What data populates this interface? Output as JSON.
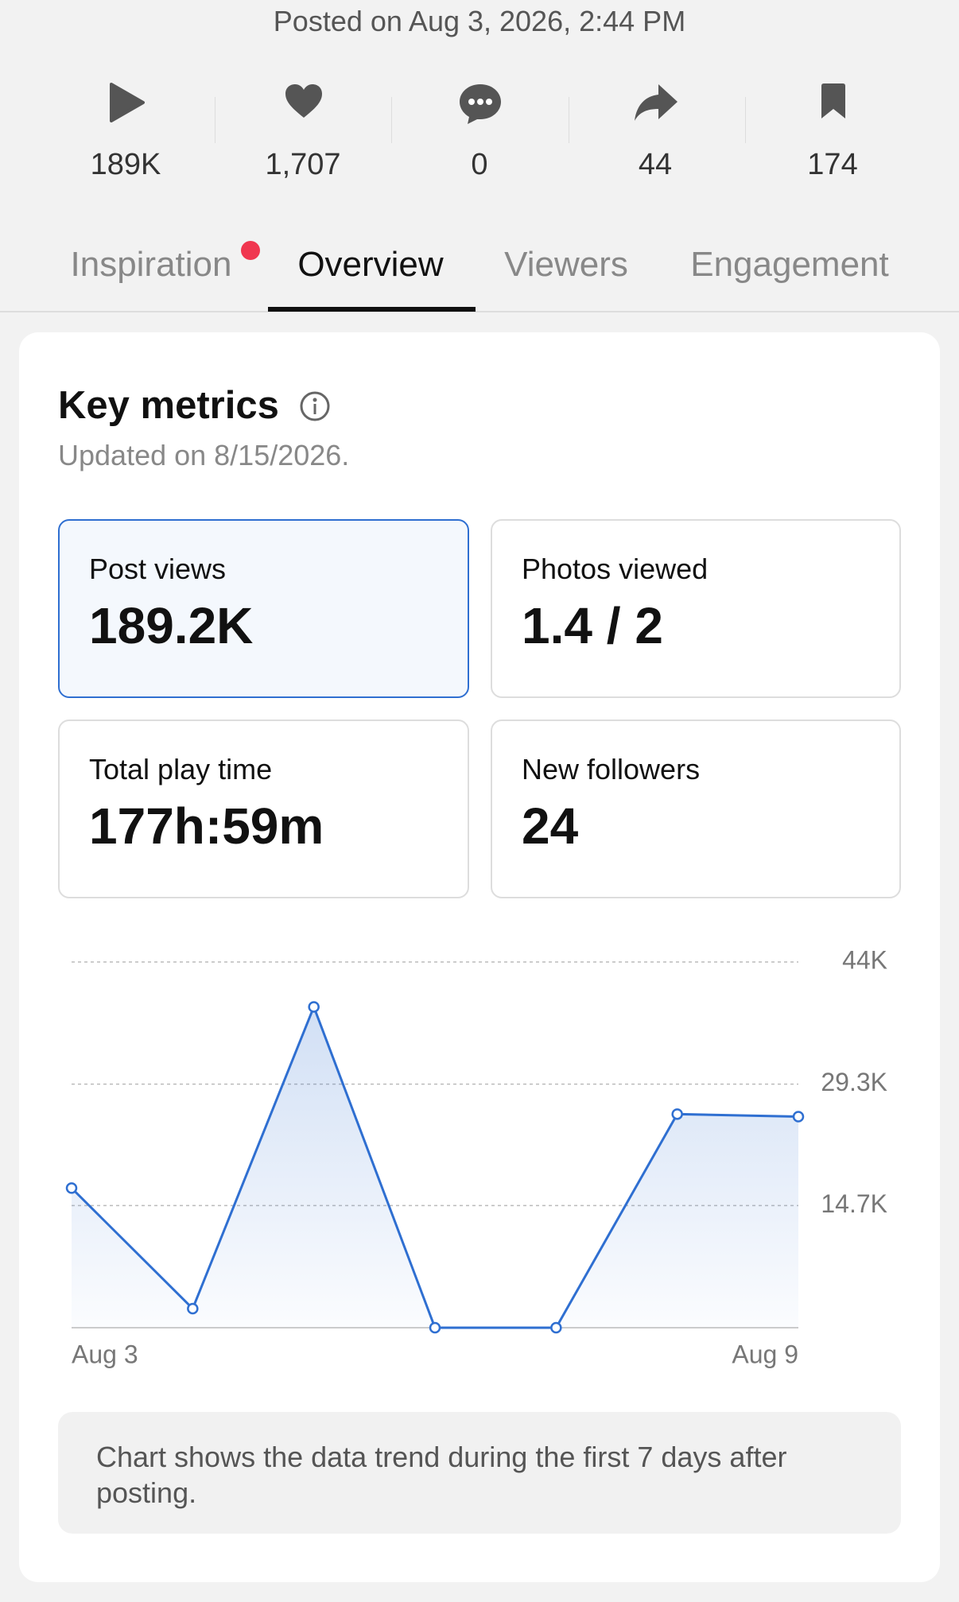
{
  "header": {
    "posted": "Posted on Aug 3, 2026, 2:44 PM"
  },
  "stats": [
    "189K",
    "1,707",
    "0",
    "44",
    "174"
  ],
  "tabs": [
    "Inspiration",
    "Overview",
    "Viewers",
    "Engagement"
  ],
  "card": {
    "title": "Key metrics",
    "updated": "Updated on 8/15/2026.",
    "metrics": [
      {
        "label": "Post views",
        "value": "189.2K"
      },
      {
        "label": "Photos viewed",
        "value": "1.4 / 2"
      },
      {
        "label": "Total play time",
        "value": "177h:59m"
      },
      {
        "label": "New followers",
        "value": "24"
      }
    ],
    "note": "Chart shows the data trend during the first 7 days after posting."
  },
  "chart_data": {
    "type": "line",
    "categories": [
      "Aug 3",
      null,
      null,
      null,
      null,
      null,
      "Aug 9"
    ],
    "series": [
      {
        "color": "#2f6fd1",
        "values": [
          16800,
          2300,
          38600,
          0,
          0,
          25700,
          25400
        ]
      }
    ],
    "ylim": [
      0,
      44000
    ],
    "yticks": [
      {
        "value": 14700,
        "label": "14.7K"
      },
      {
        "value": 29300,
        "label": "29.3K"
      },
      {
        "value": 44000,
        "label": "44K"
      }
    ],
    "grid": true
  }
}
